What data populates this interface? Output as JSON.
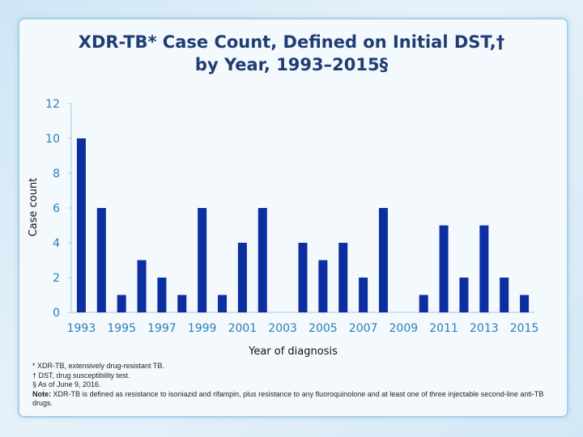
{
  "title_line1": "XDR-TB* Case Count, Defined on Initial DST,†",
  "title_line2": "by Year, 1993–2015§",
  "footnotes": {
    "asterisk": "* XDR-TB, extensively drug-resistant TB.",
    "dagger": "† DST, drug susceptibility test.",
    "section": "§ As of June 9, 2016.",
    "note_label": "Note:",
    "note_text": " XDR-TB is defined as resistance to isoniazid and rifampin, plus resistance to any fluoroquinolone and at least one of three injectable second-line anti-TB drugs."
  },
  "colors": {
    "bar": "#0b2fa0",
    "axis_text": "#2a7fb9",
    "title": "#1f3d73"
  },
  "chart_data": {
    "type": "bar",
    "title": "XDR-TB* Case Count, Defined on Initial DST,† by Year, 1993–2015§",
    "xlabel": "Year of diagnosis",
    "ylabel": "Case count",
    "ylim": [
      0,
      12
    ],
    "yticks": [
      "0",
      "2",
      "4",
      "6",
      "8",
      "10",
      "12"
    ],
    "xtick_labels": [
      "1993",
      "1995",
      "1997",
      "1999",
      "2001",
      "2003",
      "2005",
      "2007",
      "2009",
      "2011",
      "2013",
      "2015"
    ],
    "categories": [
      "1993",
      "1994",
      "1995",
      "1996",
      "1997",
      "1998",
      "1999",
      "2000",
      "2001",
      "2002",
      "2003",
      "2004",
      "2005",
      "2006",
      "2007",
      "2008",
      "2009",
      "2010",
      "2011",
      "2012",
      "2013",
      "2014",
      "2015"
    ],
    "values": [
      10,
      6,
      1,
      3,
      2,
      1,
      6,
      1,
      4,
      6,
      0,
      4,
      3,
      4,
      2,
      6,
      0,
      1,
      5,
      2,
      5,
      2,
      1
    ],
    "grid": false,
    "legend": "none"
  }
}
